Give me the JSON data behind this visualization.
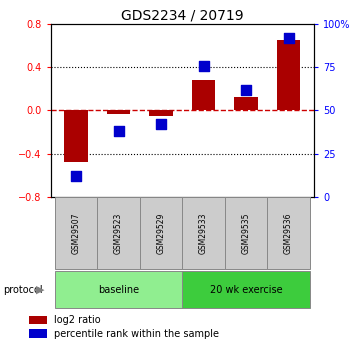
{
  "title": "GDS2234 / 20719",
  "samples": [
    "GSM29507",
    "GSM29523",
    "GSM29529",
    "GSM29533",
    "GSM29535",
    "GSM29536"
  ],
  "log2_ratio": [
    -0.48,
    -0.03,
    -0.05,
    0.28,
    0.12,
    0.65
  ],
  "percentile_rank": [
    12,
    38,
    42,
    76,
    62,
    92
  ],
  "ylim_left": [
    -0.8,
    0.8
  ],
  "ylim_right": [
    0,
    100
  ],
  "yticks_left": [
    -0.8,
    -0.4,
    0.0,
    0.4,
    0.8
  ],
  "yticks_right": [
    0,
    25,
    50,
    75,
    100
  ],
  "protocol_groups": [
    {
      "label": "baseline",
      "color": "#90ee90"
    },
    {
      "label": "20 wk exercise",
      "color": "#3dcc3d"
    }
  ],
  "bar_color": "#aa0000",
  "dot_color": "#0000cc",
  "zero_line_color": "#cc0000",
  "dotted_line_color": "#000000",
  "bg_color": "#ffffff",
  "sample_box_color": "#cccccc",
  "bar_width": 0.55,
  "dot_size": 45,
  "legend_entries": [
    "log2 ratio",
    "percentile rank within the sample"
  ],
  "legend_colors": [
    "#aa0000",
    "#0000cc"
  ]
}
